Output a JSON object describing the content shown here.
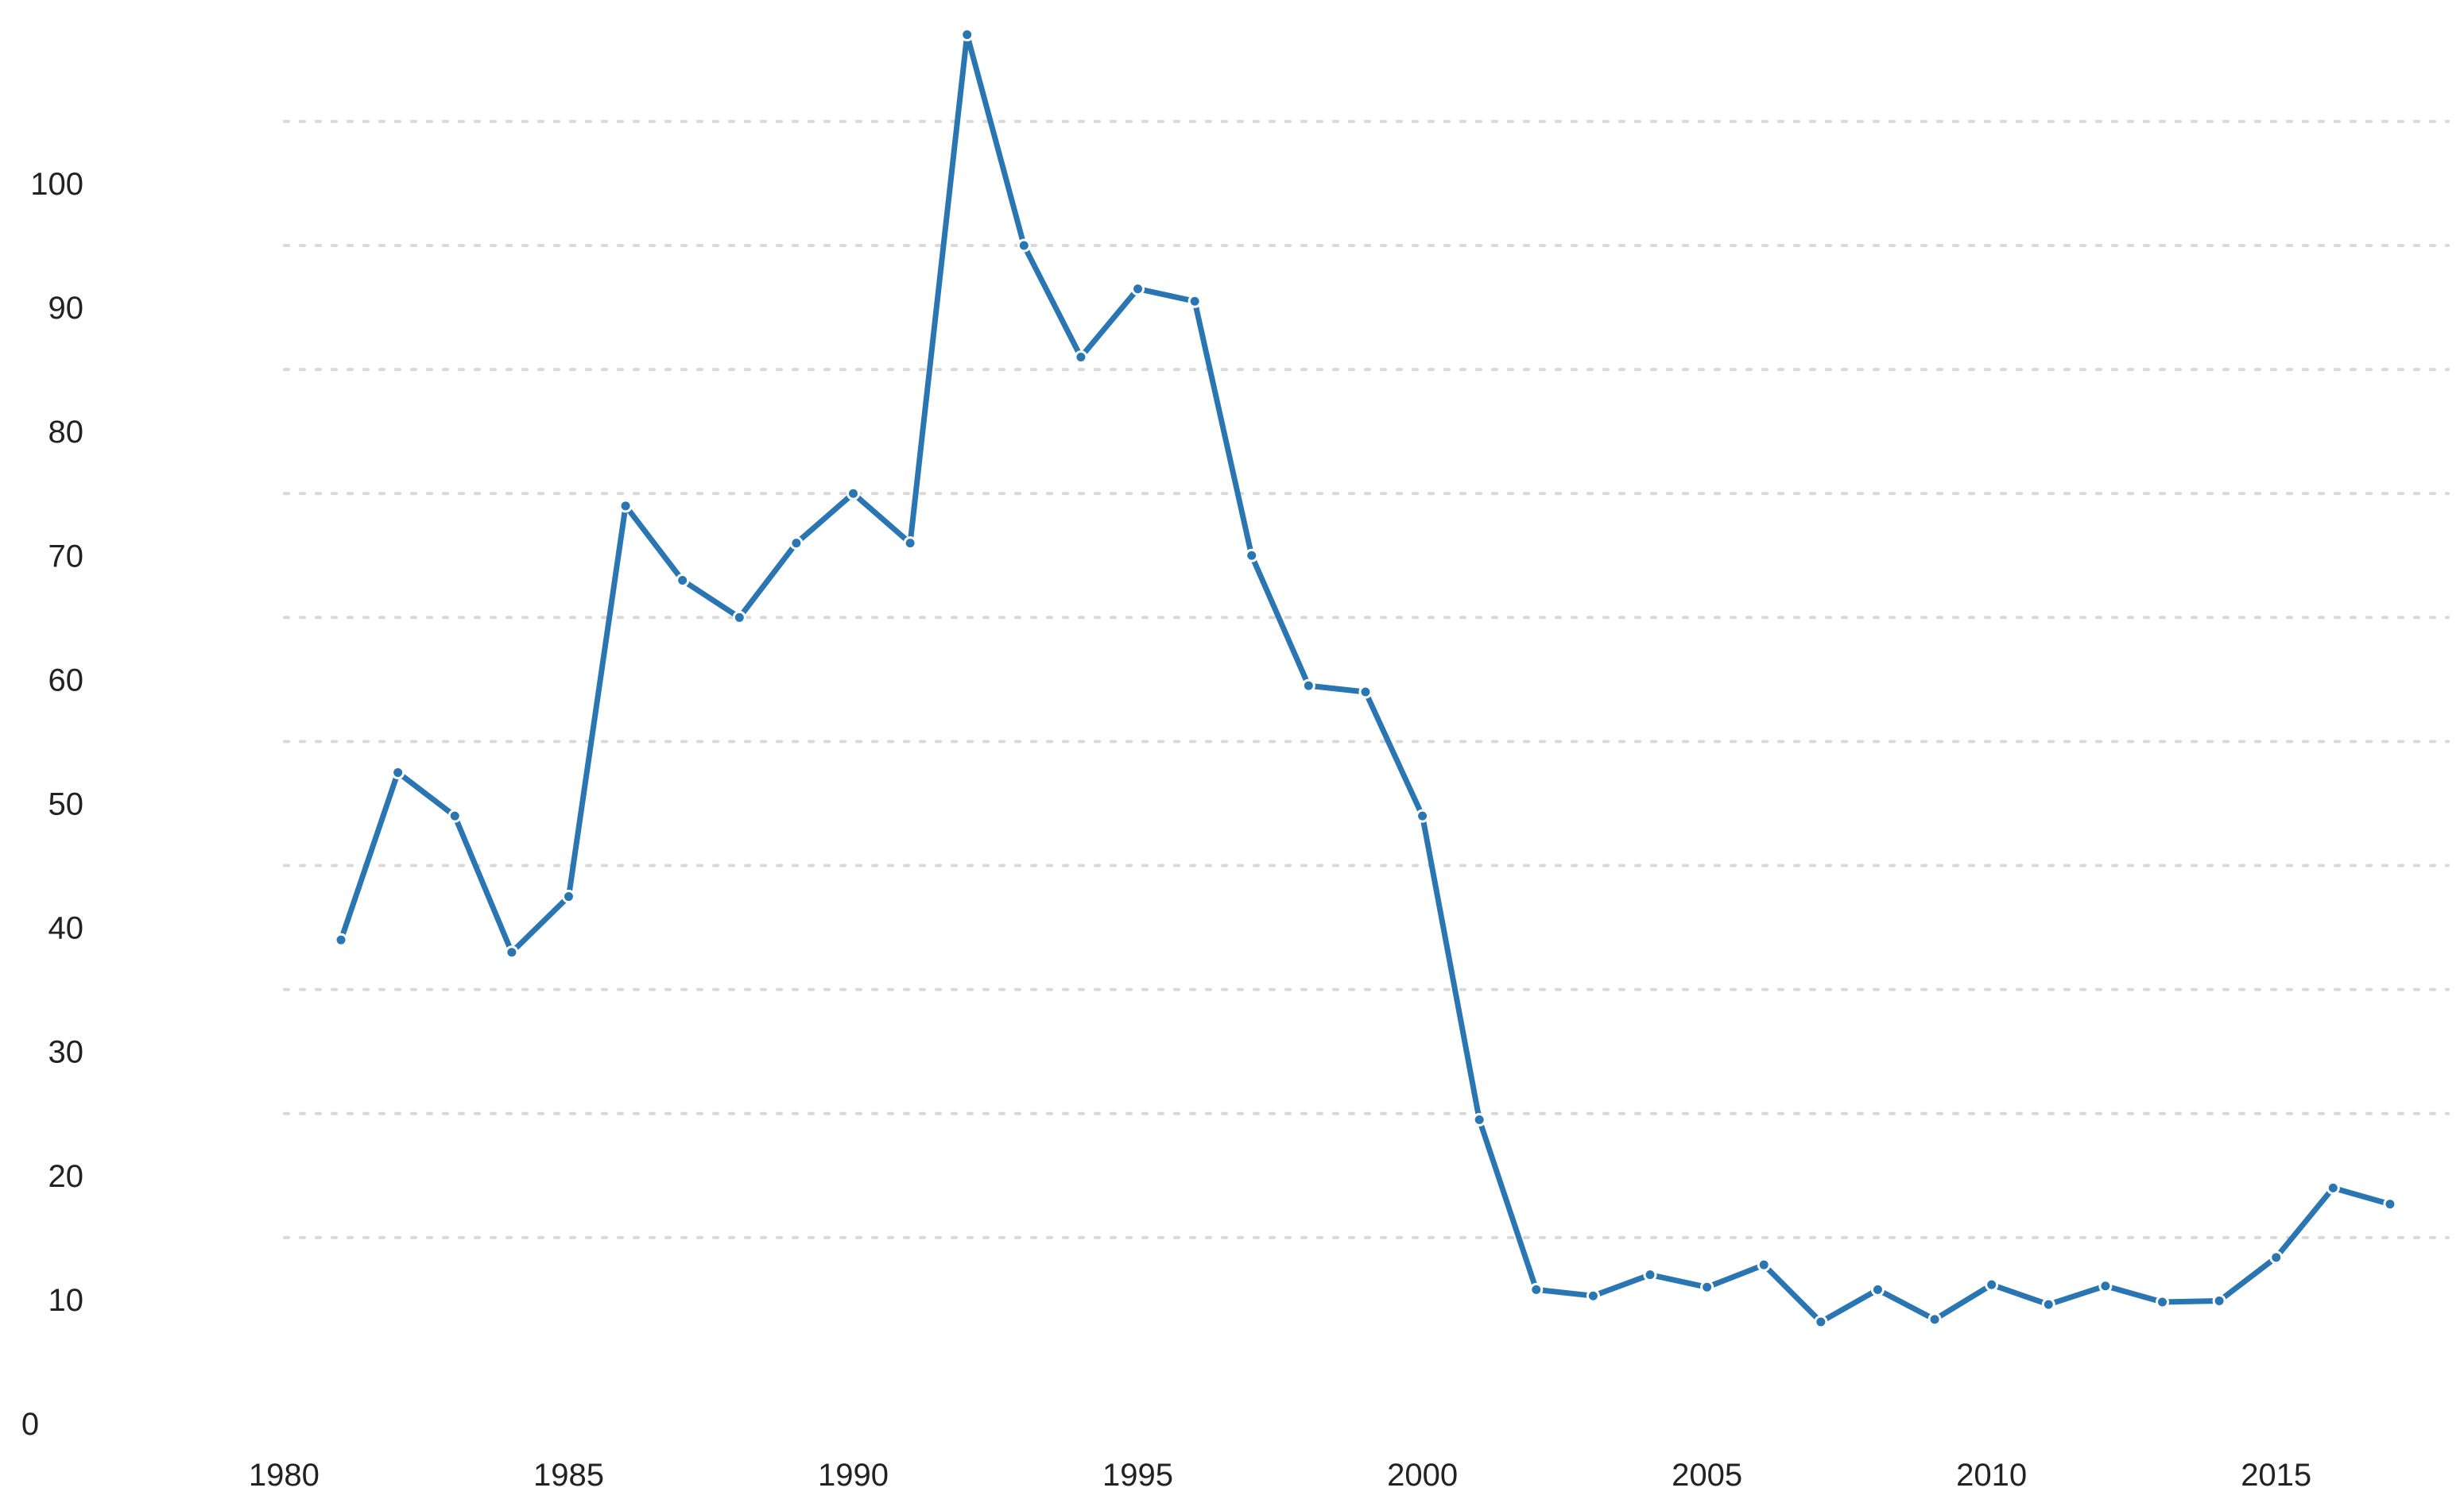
{
  "chart_data": {
    "type": "line",
    "title": "",
    "xlabel": "",
    "ylabel": "",
    "grid": true,
    "legend": "none",
    "xlim": [
      1978.5,
      2018.3
    ],
    "ylim": [
      0,
      113
    ],
    "x_ticks": [
      1980,
      1985,
      1990,
      1995,
      2000,
      2005,
      2010,
      2015
    ],
    "y_ticks": [
      0,
      10,
      20,
      30,
      40,
      50,
      60,
      70,
      80,
      90,
      100
    ],
    "line_color": "#2a76b2",
    "grid_color": "#d9d9d9",
    "series": [
      {
        "x": [
          1981,
          1982,
          1983,
          1984,
          1985,
          1986,
          1987,
          1988,
          1989,
          1990,
          1991,
          1992,
          1993,
          1994,
          1995,
          1996,
          1997,
          1998,
          1999,
          2000,
          2001,
          2002,
          2003,
          2004,
          2005,
          2006,
          2007,
          2008,
          2009,
          2010,
          2011,
          2012,
          2013,
          2014,
          2015,
          2016,
          2017
        ],
        "values": [
          39,
          52.5,
          49,
          38,
          42.5,
          74,
          68,
          65,
          71,
          75,
          71,
          112,
          95,
          86,
          91.5,
          90.5,
          70,
          59.5,
          59,
          49,
          24.5,
          10.8,
          10.3,
          12,
          11,
          12.8,
          8.2,
          10.8,
          8.4,
          11.2,
          9.6,
          11.1,
          9.8,
          9.9,
          13.4,
          19,
          17.7
        ]
      }
    ]
  }
}
